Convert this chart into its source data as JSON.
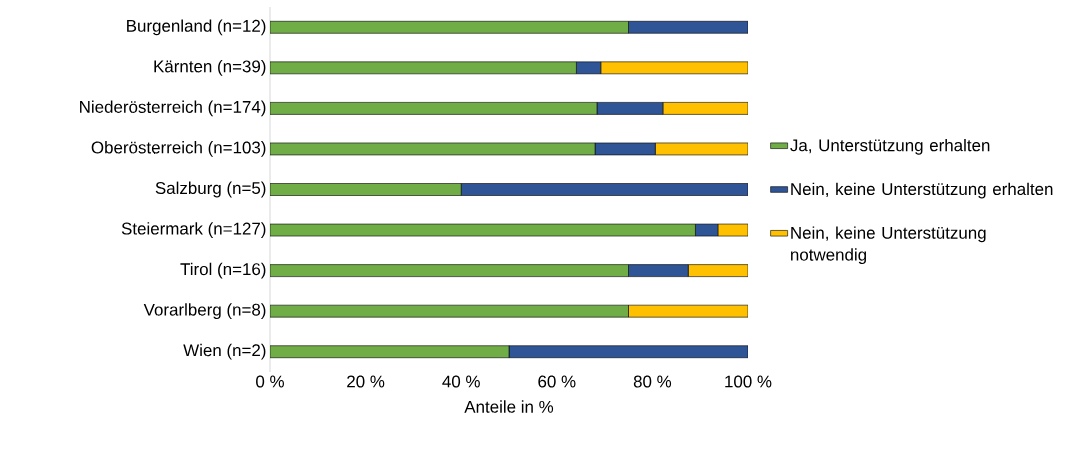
{
  "chart_data": {
    "type": "bar",
    "orientation": "horizontal",
    "stacked": true,
    "xlabel": "Anteile in %",
    "legend": "right",
    "categories": [
      "Burgenland (n=12)",
      "Kärnten (n=39)",
      "Niederösterreich (n=174)",
      "Oberösterreich (n=103)",
      "Salzburg (n=5)",
      "Steiermark (n=127)",
      "Tirol (n=16)",
      "Vorarlberg (n=8)",
      "Wien (n=2)"
    ],
    "xlim": [
      0,
      100
    ],
    "xticks": [
      {
        "value": 0,
        "label": "0 %"
      },
      {
        "value": 20,
        "label": "20 %"
      },
      {
        "value": 40,
        "label": "40 %"
      },
      {
        "value": 60,
        "label": "60 %"
      },
      {
        "value": 80,
        "label": "80 %"
      },
      {
        "value": 100,
        "label": "100 %"
      }
    ],
    "series": [
      {
        "name": "Ja, Unterstützung erhalten",
        "color": "#70ad47",
        "values": [
          75,
          64.1,
          68.4,
          68,
          40,
          89,
          75,
          75,
          50
        ]
      },
      {
        "name": "Nein, keine Unterstützung erhalten",
        "color": "#2f5597",
        "values": [
          25,
          5.1,
          13.8,
          12.6,
          60,
          4.7,
          12.5,
          0,
          50
        ]
      },
      {
        "name": "Nein, keine Unterstützung notwendig",
        "color": "#ffc000",
        "values": [
          0,
          30.8,
          17.8,
          19.4,
          0,
          6.3,
          12.5,
          25,
          0
        ]
      }
    ]
  }
}
